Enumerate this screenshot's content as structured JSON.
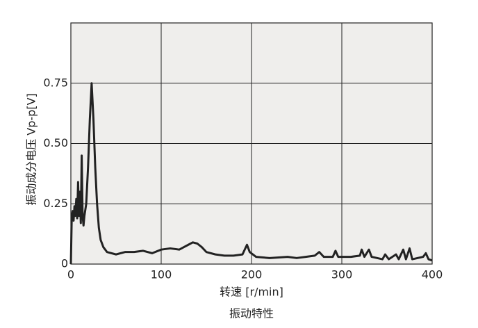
{
  "chart_data": {
    "type": "line",
    "title": "振动特性",
    "xlabel": "转速 [r/min]",
    "ylabel": "振动成分电压  Vp-p[V]",
    "x": [
      0,
      1,
      2,
      3,
      4,
      5,
      6,
      7,
      8,
      9,
      10,
      11,
      12,
      13,
      14,
      15,
      17,
      19,
      21,
      23,
      25,
      27,
      29,
      31,
      33,
      36,
      40,
      50,
      60,
      70,
      80,
      90,
      100,
      110,
      120,
      125,
      130,
      135,
      140,
      145,
      150,
      160,
      170,
      180,
      190,
      195,
      198,
      205,
      220,
      240,
      250,
      260,
      270,
      275,
      280,
      290,
      293,
      296,
      310,
      320,
      322,
      325,
      330,
      333,
      345,
      348,
      352,
      360,
      363,
      368,
      371,
      375,
      378,
      390,
      393,
      396,
      400
    ],
    "values": [
      0.0,
      0.2,
      0.22,
      0.18,
      0.24,
      0.2,
      0.27,
      0.19,
      0.34,
      0.2,
      0.3,
      0.17,
      0.45,
      0.2,
      0.16,
      0.2,
      0.25,
      0.4,
      0.6,
      0.75,
      0.6,
      0.4,
      0.25,
      0.15,
      0.1,
      0.07,
      0.05,
      0.04,
      0.05,
      0.05,
      0.055,
      0.045,
      0.06,
      0.065,
      0.06,
      0.07,
      0.08,
      0.09,
      0.085,
      0.07,
      0.05,
      0.04,
      0.035,
      0.035,
      0.04,
      0.08,
      0.05,
      0.03,
      0.025,
      0.03,
      0.025,
      0.03,
      0.035,
      0.05,
      0.03,
      0.03,
      0.055,
      0.03,
      0.03,
      0.035,
      0.06,
      0.03,
      0.06,
      0.03,
      0.02,
      0.04,
      0.02,
      0.04,
      0.02,
      0.06,
      0.02,
      0.065,
      0.02,
      0.03,
      0.045,
      0.02,
      0.015
    ],
    "color": "#222222",
    "xlim": [
      0,
      400
    ],
    "xticks": [
      0,
      100,
      200,
      300,
      400
    ],
    "ylim": [
      0,
      1.0
    ],
    "yticks": [
      0,
      0.25,
      {
        "value": 0.5,
        "label": "0.50"
      },
      0.75
    ],
    "grid": true
  }
}
